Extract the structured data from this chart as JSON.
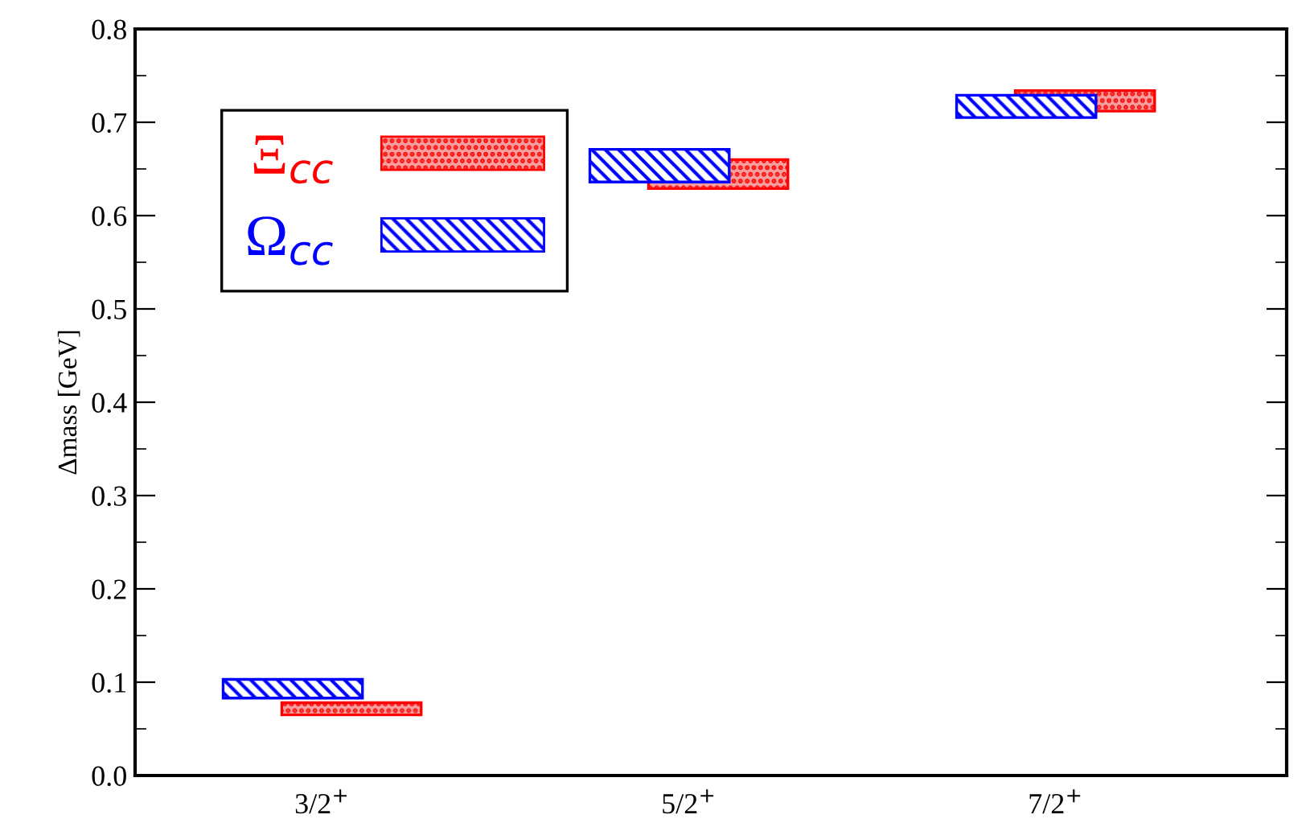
{
  "chart_data": {
    "type": "bar",
    "ylabel": "Δmass [GeV]",
    "categories": [
      "3/2$^{+}$",
      "5/2$^{+}$",
      "7/2$^{+}$"
    ],
    "series": [
      {
        "name": "Ξ$_{cc}$",
        "color": "#ff0000",
        "base": [
          0.065,
          0.629,
          0.712
        ],
        "values": [
          0.013,
          0.031,
          0.022
        ]
      },
      {
        "name": "Ω$_{cc}$",
        "color": "#0000ff",
        "base": [
          0.083,
          0.636,
          0.705
        ],
        "values": [
          0.02,
          0.035,
          0.024
        ]
      }
    ],
    "ylim": [
      0,
      0.8
    ],
    "yticks": [
      {
        "value": 0,
        "label": "0.0"
      },
      0.1,
      0.2,
      0.3,
      0.4,
      0.5,
      0.6,
      0.7,
      0.8
    ],
    "legend": "top left",
    "grid": false
  }
}
